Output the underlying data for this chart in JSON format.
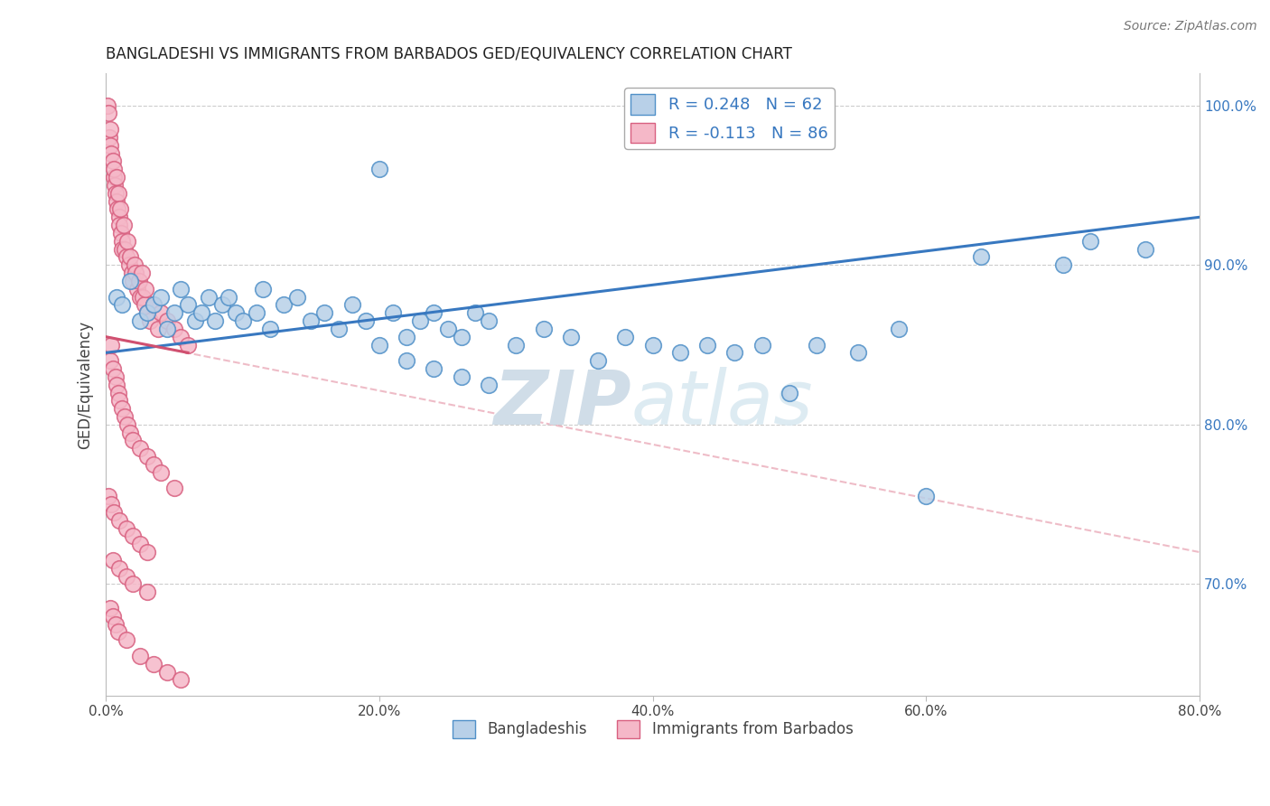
{
  "title": "BANGLADESHI VS IMMIGRANTS FROM BARBADOS GED/EQUIVALENCY CORRELATION CHART",
  "source_text": "Source: ZipAtlas.com",
  "ylabel": "GED/Equivalency",
  "legend_label_blue": "Bangladeshis",
  "legend_label_pink": "Immigrants from Barbados",
  "r_blue": 0.248,
  "n_blue": 62,
  "r_pink": -0.113,
  "n_pink": 86,
  "xlim": [
    0.0,
    80.0
  ],
  "ylim": [
    63.0,
    102.0
  ],
  "x_ticks": [
    0.0,
    20.0,
    40.0,
    60.0,
    80.0
  ],
  "y_ticks_right": [
    70.0,
    80.0,
    90.0,
    100.0
  ],
  "color_blue_fill": "#b8d0e8",
  "color_blue_edge": "#5090c8",
  "color_pink_fill": "#f5b8c8",
  "color_pink_edge": "#d86080",
  "color_trend_blue": "#3878c0",
  "color_trend_pink": "#d05070",
  "color_trend_pink_dash": "#e8a0b0",
  "watermark": "ZIPatlas",
  "watermark_color": "#d0dde8",
  "background_color": "#ffffff",
  "grid_color": "#cccccc",
  "blue_scatter_x": [
    0.8,
    1.2,
    1.8,
    2.5,
    3.0,
    3.5,
    4.0,
    4.5,
    5.0,
    5.5,
    6.0,
    6.5,
    7.0,
    7.5,
    8.0,
    8.5,
    9.0,
    9.5,
    10.0,
    11.0,
    11.5,
    12.0,
    13.0,
    14.0,
    15.0,
    16.0,
    17.0,
    18.0,
    19.0,
    20.0,
    21.0,
    22.0,
    23.0,
    24.0,
    25.0,
    26.0,
    27.0,
    28.0,
    30.0,
    32.0,
    34.0,
    36.0,
    38.0,
    40.0,
    42.0,
    44.0,
    46.0,
    48.0,
    50.0,
    52.0,
    55.0,
    58.0,
    22.0,
    24.0,
    26.0,
    28.0,
    60.0,
    64.0,
    70.0,
    72.0,
    76.0,
    20.0
  ],
  "blue_scatter_y": [
    88.0,
    87.5,
    89.0,
    86.5,
    87.0,
    87.5,
    88.0,
    86.0,
    87.0,
    88.5,
    87.5,
    86.5,
    87.0,
    88.0,
    86.5,
    87.5,
    88.0,
    87.0,
    86.5,
    87.0,
    88.5,
    86.0,
    87.5,
    88.0,
    86.5,
    87.0,
    86.0,
    87.5,
    86.5,
    85.0,
    87.0,
    85.5,
    86.5,
    87.0,
    86.0,
    85.5,
    87.0,
    86.5,
    85.0,
    86.0,
    85.5,
    84.0,
    85.5,
    85.0,
    84.5,
    85.0,
    84.5,
    85.0,
    82.0,
    85.0,
    84.5,
    86.0,
    84.0,
    83.5,
    83.0,
    82.5,
    75.5,
    90.5,
    90.0,
    91.5,
    91.0,
    96.0
  ],
  "pink_scatter_x": [
    0.15,
    0.2,
    0.25,
    0.3,
    0.35,
    0.4,
    0.5,
    0.55,
    0.6,
    0.65,
    0.7,
    0.75,
    0.8,
    0.85,
    0.9,
    0.95,
    1.0,
    1.05,
    1.1,
    1.15,
    1.2,
    1.3,
    1.4,
    1.5,
    1.6,
    1.7,
    1.8,
    1.9,
    2.0,
    2.1,
    2.2,
    2.3,
    2.4,
    2.5,
    2.6,
    2.7,
    2.8,
    2.9,
    3.0,
    3.2,
    3.5,
    3.8,
    4.0,
    4.5,
    5.0,
    5.5,
    6.0,
    0.3,
    0.5,
    0.7,
    0.8,
    0.9,
    1.0,
    1.2,
    1.4,
    1.6,
    1.8,
    2.0,
    2.5,
    3.0,
    3.5,
    4.0,
    5.0,
    0.2,
    0.4,
    0.6,
    1.0,
    1.5,
    2.0,
    2.5,
    3.0,
    0.5,
    1.0,
    1.5,
    2.0,
    3.0,
    0.3,
    0.5,
    0.7,
    0.9,
    1.5,
    2.5,
    3.5,
    4.5,
    5.5,
    0.4
  ],
  "pink_scatter_y": [
    100.0,
    99.5,
    98.0,
    97.5,
    98.5,
    97.0,
    96.5,
    95.5,
    96.0,
    95.0,
    94.5,
    95.5,
    94.0,
    93.5,
    94.5,
    93.0,
    92.5,
    93.5,
    92.0,
    91.5,
    91.0,
    92.5,
    91.0,
    90.5,
    91.5,
    90.0,
    90.5,
    89.5,
    89.0,
    90.0,
    89.5,
    88.5,
    89.0,
    88.0,
    89.5,
    88.0,
    87.5,
    88.5,
    87.0,
    86.5,
    87.5,
    86.0,
    87.0,
    86.5,
    86.0,
    85.5,
    85.0,
    84.0,
    83.5,
    83.0,
    82.5,
    82.0,
    81.5,
    81.0,
    80.5,
    80.0,
    79.5,
    79.0,
    78.5,
    78.0,
    77.5,
    77.0,
    76.0,
    75.5,
    75.0,
    74.5,
    74.0,
    73.5,
    73.0,
    72.5,
    72.0,
    71.5,
    71.0,
    70.5,
    70.0,
    69.5,
    68.5,
    68.0,
    67.5,
    67.0,
    66.5,
    65.5,
    65.0,
    64.5,
    64.0,
    85.0
  ],
  "blue_trend_x0": 0.0,
  "blue_trend_y0": 84.5,
  "blue_trend_x1": 80.0,
  "blue_trend_y1": 93.0,
  "pink_trend_solid_x0": 0.0,
  "pink_trend_solid_y0": 85.5,
  "pink_trend_solid_x1": 6.0,
  "pink_trend_solid_y1": 84.5,
  "pink_trend_dash_x0": 0.0,
  "pink_trend_dash_y0": 85.5,
  "pink_trend_dash_x1": 80.0,
  "pink_trend_dash_y1": 72.0
}
